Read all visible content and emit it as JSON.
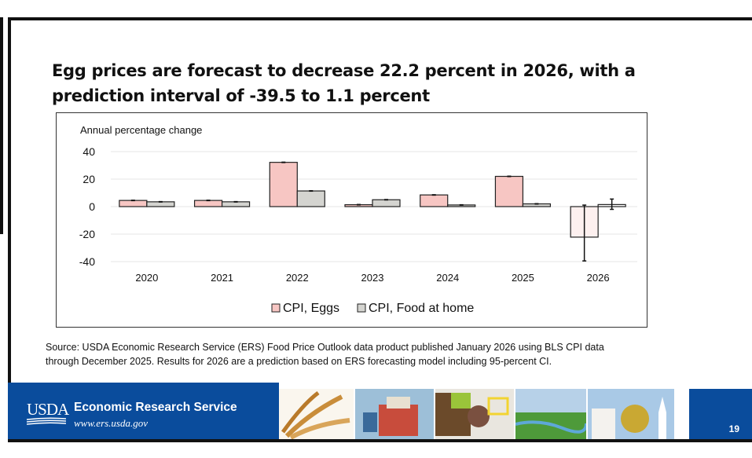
{
  "slide": {
    "title": "Egg prices are forecast to decrease 22.2 percent in 2026, with a prediction interval of -39.5 to 1.1 percent",
    "source_line1": "Source: USDA Economic Research Service (ERS) Food Price Outlook data product published January 2026 using BLS CPI data",
    "source_line2": "through December 2025. Results for 2026 are a prediction based on ERS forecasting model including 95-percent CI.",
    "page_number": "19"
  },
  "footer": {
    "logo_text": "USDA",
    "org_name": "Economic Research Service",
    "url": "www.ers.usda.gov",
    "photos": [
      "wheat-photo",
      "cargo-ship-photo",
      "grocery-shopping-photo",
      "wetlands-photo",
      "town-street-photo"
    ]
  },
  "colors": {
    "eggs": "#f7c6c3",
    "eggs_forecast": "#fdf0ef",
    "food_at_home": "#d4d4d0",
    "food_forecast": "#ffffff",
    "gridline": "#e6e6e6",
    "footer_blue": "#0a4c9c"
  },
  "chart_data": {
    "type": "bar",
    "title": "",
    "ylabel": "Annual percentage change",
    "xlabel": "",
    "ylim": [
      -40,
      40
    ],
    "yticks": [
      40,
      20,
      0,
      -20,
      -40
    ],
    "grid": true,
    "legend_position": "bottom",
    "categories": [
      "2020",
      "2021",
      "2022",
      "2023",
      "2024",
      "2025",
      "2026"
    ],
    "series": [
      {
        "name": "CPI, Eggs",
        "values": [
          4.5,
          4.5,
          32.2,
          1.4,
          8.5,
          22.0,
          -22.2
        ],
        "ci": [
          null,
          null,
          null,
          null,
          null,
          null,
          [
            -39.5,
            1.1
          ]
        ]
      },
      {
        "name": "CPI, Food at home",
        "values": [
          3.5,
          3.5,
          11.4,
          5.0,
          1.2,
          2.0,
          1.5
        ],
        "ci": [
          null,
          null,
          null,
          null,
          null,
          null,
          [
            -2.0,
            5.5
          ]
        ]
      }
    ],
    "legend": [
      "CPI, Eggs",
      "CPI, Food at home"
    ],
    "forecast_categories": [
      "2026"
    ]
  }
}
